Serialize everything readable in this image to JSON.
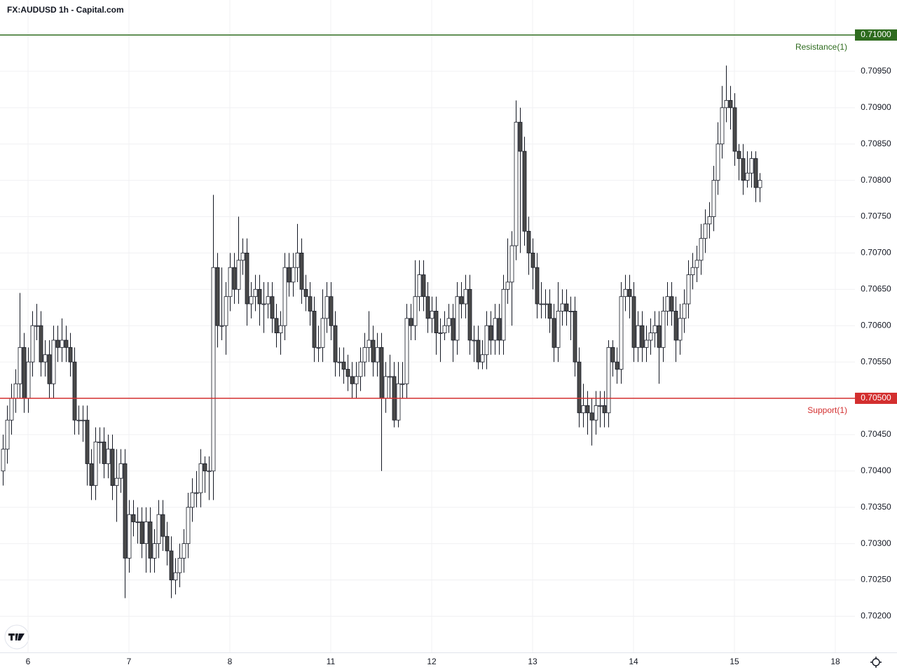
{
  "chart_data": {
    "type": "candlestick",
    "title": "FX:AUDUSD 1h - Capital.com",
    "categories": [
      null,
      null,
      null,
      null,
      null,
      null,
      "6",
      null,
      null,
      null,
      null,
      null,
      null,
      null,
      null,
      null,
      null,
      null,
      null,
      null,
      null,
      null,
      null,
      null,
      null,
      null,
      null,
      null,
      null,
      null,
      "7",
      null,
      null,
      null,
      null,
      null,
      null,
      null,
      null,
      null,
      null,
      null,
      null,
      null,
      null,
      null,
      null,
      null,
      null,
      null,
      null,
      null,
      null,
      null,
      "8",
      null,
      null,
      null,
      null,
      null,
      null,
      null,
      null,
      null,
      null,
      null,
      null,
      null,
      null,
      null,
      null,
      null,
      null,
      null,
      null,
      null,
      null,
      null,
      "11",
      null,
      null,
      null,
      null,
      null,
      null,
      null,
      null,
      null,
      null,
      null,
      null,
      null,
      null,
      null,
      null,
      null,
      null,
      null,
      null,
      null,
      null,
      null,
      "12",
      null,
      null,
      null,
      null,
      null,
      null,
      null,
      null,
      null,
      null,
      null,
      null,
      null,
      null,
      null,
      null,
      null,
      null,
      null,
      null,
      null,
      null,
      null,
      "13",
      null,
      null,
      null,
      null,
      null,
      null,
      null,
      null,
      null,
      null,
      null,
      null,
      null,
      null,
      null,
      null,
      null,
      null,
      null,
      null,
      null,
      null,
      null,
      "14",
      null,
      null,
      null,
      null,
      null,
      null,
      null,
      null,
      null,
      null,
      null,
      null,
      null,
      null,
      null,
      null,
      null,
      null,
      null,
      null,
      null,
      null,
      null,
      "15",
      null,
      null,
      null,
      null,
      null,
      null,
      null,
      null,
      null,
      null,
      null,
      null,
      null,
      null,
      null,
      null,
      null,
      null,
      null,
      null,
      null,
      null,
      null,
      "18"
    ],
    "open": [
      0.704,
      0.7043,
      0.7047,
      0.705,
      0.7052,
      0.7057,
      0.705,
      0.7055,
      0.706,
      0.706,
      0.7055,
      0.7056,
      0.7052,
      0.7058,
      0.7057,
      0.7058,
      0.7057,
      0.7055,
      0.7047,
      0.7047,
      0.7047,
      0.7041,
      0.7038,
      0.7044,
      0.7044,
      0.7041,
      0.7043,
      0.7038,
      0.7039,
      0.7041,
      0.7028,
      0.7034,
      0.7033,
      0.7033,
      0.703,
      0.7033,
      0.7028,
      0.703,
      0.7034,
      0.7031,
      0.7029,
      0.7025,
      0.7026,
      0.7028,
      0.703,
      0.7035,
      0.7037,
      0.7037,
      0.7041,
      0.704,
      0.704,
      0.7068,
      0.706,
      0.706,
      0.7064,
      0.7068,
      0.7065,
      0.7069,
      0.707,
      0.7063,
      0.7064,
      0.7065,
      0.7063,
      0.7063,
      0.7064,
      0.7061,
      0.7059,
      0.706,
      0.7068,
      0.7066,
      0.7068,
      0.707,
      0.7065,
      0.7064,
      0.7062,
      0.7057,
      0.7057,
      0.7061,
      0.7064,
      0.706,
      0.7055,
      0.7055,
      0.7054,
      0.7053,
      0.7052,
      0.7053,
      0.7055,
      0.7057,
      0.7058,
      0.7055,
      0.7057,
      0.705,
      0.7053,
      0.7053,
      0.7047,
      0.7052,
      0.7052,
      0.7061,
      0.706,
      0.7064,
      0.7067,
      0.7064,
      0.7061,
      0.7062,
      0.7059,
      0.7059,
      0.706,
      0.7061,
      0.7058,
      0.7064,
      0.7063,
      0.7065,
      0.7058,
      0.7058,
      0.7055,
      0.7056,
      0.706,
      0.7058,
      0.7061,
      0.7058,
      0.7065,
      0.7066,
      0.7071,
      0.7088,
      0.7084,
      0.7073,
      0.707,
      0.7068,
      0.7063,
      0.7063,
      0.7063,
      0.7061,
      0.7057,
      0.7062,
      0.7063,
      0.7062,
      0.7062,
      0.7055,
      0.7048,
      0.7049,
      0.7048,
      0.7047,
      0.7049,
      0.7049,
      0.7048,
      0.7057,
      0.7055,
      0.7054,
      0.7064,
      0.7065,
      0.7064,
      0.7057,
      0.706,
      0.7057,
      0.7058,
      0.7059,
      0.706,
      0.7057,
      0.7062,
      0.7064,
      0.7062,
      0.7058,
      0.7061,
      0.7063,
      0.7067,
      0.7068,
      0.7069,
      0.7072,
      0.7074,
      0.7075,
      0.708,
      0.7085,
      0.709,
      0.7091,
      0.709,
      0.7084,
      0.7083,
      0.708,
      0.7081,
      0.7083,
      0.7079,
      null,
      null,
      null,
      null,
      null,
      null,
      null,
      null,
      null,
      null,
      null,
      null,
      null,
      null,
      null,
      null,
      null,
      null
    ],
    "high": [
      0.7045,
      0.7049,
      0.7052,
      0.7054,
      0.70645,
      0.7059,
      0.7057,
      0.7062,
      0.7063,
      0.7062,
      0.7058,
      0.7058,
      0.706,
      0.706,
      0.7061,
      0.706,
      0.7059,
      0.7057,
      0.7049,
      0.7049,
      0.7049,
      0.7043,
      0.7046,
      0.7046,
      0.7046,
      0.7045,
      0.7045,
      0.7043,
      0.7043,
      0.7043,
      0.7036,
      0.7036,
      0.7035,
      0.7035,
      0.7035,
      0.7035,
      0.7032,
      0.7036,
      0.7036,
      0.7033,
      0.7031,
      0.7028,
      0.703,
      0.7032,
      0.7037,
      0.7039,
      0.704,
      0.7043,
      0.7042,
      0.7042,
      0.7078,
      0.707,
      0.7068,
      0.7066,
      0.707,
      0.707,
      0.7075,
      0.7072,
      0.7072,
      0.7066,
      0.7067,
      0.7067,
      0.7066,
      0.7066,
      0.7066,
      0.7063,
      0.7062,
      0.707,
      0.707,
      0.707,
      0.7074,
      0.7072,
      0.7067,
      0.7066,
      0.7064,
      0.706,
      0.7065,
      0.7066,
      0.7066,
      0.7062,
      0.7057,
      0.7057,
      0.7056,
      0.7055,
      0.7055,
      0.7057,
      0.7059,
      0.7062,
      0.706,
      0.7059,
      0.7059,
      0.7055,
      0.7056,
      0.7055,
      0.7055,
      0.7055,
      0.7063,
      0.7063,
      0.7069,
      0.7069,
      0.7069,
      0.7066,
      0.7064,
      0.7064,
      0.7061,
      0.7062,
      0.7063,
      0.7063,
      0.7066,
      0.7066,
      0.7067,
      0.7067,
      0.706,
      0.706,
      0.7058,
      0.7062,
      0.7062,
      0.7063,
      0.7063,
      0.7067,
      0.7072,
      0.7073,
      0.7091,
      0.709,
      0.7086,
      0.7075,
      0.7072,
      0.707,
      0.7066,
      0.7065,
      0.7065,
      0.7063,
      0.7066,
      0.7065,
      0.7065,
      0.7064,
      0.7064,
      0.7057,
      0.7052,
      0.7051,
      0.705,
      0.7051,
      0.7051,
      0.7051,
      0.7058,
      0.7058,
      0.7057,
      0.7066,
      0.7067,
      0.7067,
      0.7066,
      0.7062,
      0.7062,
      0.706,
      0.7061,
      0.7062,
      0.7062,
      0.7064,
      0.7066,
      0.7066,
      0.7064,
      0.7063,
      0.7065,
      0.7069,
      0.707,
      0.7071,
      0.7074,
      0.7076,
      0.7077,
      0.7082,
      0.7088,
      0.7093,
      0.70958,
      0.7093,
      0.7092,
      0.7085,
      0.7085,
      0.7084,
      0.7084,
      0.7084,
      0.7081,
      null,
      null,
      null,
      null,
      null,
      null,
      null,
      null,
      null,
      null,
      null,
      null,
      null,
      null,
      null,
      null,
      null,
      null
    ],
    "low": [
      0.7038,
      0.7041,
      0.7045,
      0.7048,
      0.705,
      0.7048,
      0.7048,
      0.7053,
      0.7058,
      0.7053,
      0.7053,
      0.705,
      0.705,
      0.7055,
      0.7055,
      0.7055,
      0.7053,
      0.7045,
      0.7045,
      0.7044,
      0.7038,
      0.7036,
      0.7036,
      0.7041,
      0.7039,
      0.7039,
      0.7036,
      0.7033,
      0.7037,
      0.70225,
      0.7026,
      0.7031,
      0.703,
      0.7028,
      0.7026,
      0.7026,
      0.7026,
      0.7028,
      0.7029,
      0.7027,
      0.70225,
      0.7023,
      0.7024,
      0.7026,
      0.7028,
      0.7033,
      0.7035,
      0.7035,
      0.7037,
      0.7036,
      0.7036,
      0.7057,
      0.7058,
      0.7056,
      0.7062,
      0.7063,
      0.7063,
      0.7067,
      0.706,
      0.7061,
      0.7062,
      0.706,
      0.7059,
      0.7061,
      0.7059,
      0.7057,
      0.7056,
      0.7058,
      0.7064,
      0.7064,
      0.7066,
      0.7063,
      0.7062,
      0.706,
      0.7055,
      0.7055,
      0.7055,
      0.7059,
      0.7058,
      0.7053,
      0.7053,
      0.7052,
      0.7051,
      0.705,
      0.705,
      0.7051,
      0.7053,
      0.7055,
      0.7053,
      0.7053,
      0.704,
      0.7048,
      0.705,
      0.7046,
      0.7046,
      0.705,
      0.705,
      0.7058,
      0.7058,
      0.7062,
      0.7062,
      0.7059,
      0.7059,
      0.7056,
      0.7055,
      0.7058,
      0.7059,
      0.7055,
      0.7056,
      0.7061,
      0.7061,
      0.7056,
      0.7055,
      0.7054,
      0.7054,
      0.7054,
      0.7056,
      0.7056,
      0.7056,
      0.7056,
      0.7063,
      0.706,
      0.7069,
      0.707,
      0.7071,
      0.7067,
      0.7065,
      0.7061,
      0.7061,
      0.7061,
      0.7059,
      0.7055,
      0.7055,
      0.706,
      0.706,
      0.7058,
      0.7053,
      0.7046,
      0.7046,
      0.7045,
      0.70435,
      0.7045,
      0.7046,
      0.7046,
      0.7046,
      0.7053,
      0.7052,
      0.7052,
      0.7062,
      0.7061,
      0.7055,
      0.7055,
      0.7055,
      0.7055,
      0.7056,
      0.7057,
      0.7052,
      0.7055,
      0.706,
      0.706,
      0.7055,
      0.7056,
      0.7059,
      0.7061,
      0.7065,
      0.7066,
      0.7067,
      0.707,
      0.7072,
      0.7073,
      0.7078,
      0.7083,
      0.7088,
      0.7087,
      0.7082,
      0.708,
      0.7078,
      0.7079,
      0.7079,
      0.7077,
      0.7077,
      null,
      null,
      null,
      null,
      null,
      null,
      null,
      null,
      null,
      null,
      null,
      null,
      null,
      null,
      null,
      null,
      null,
      null
    ],
    "close": [
      0.7043,
      0.7047,
      0.705,
      0.7052,
      0.7057,
      0.705,
      0.7055,
      0.706,
      0.706,
      0.7055,
      0.7056,
      0.7052,
      0.7058,
      0.7057,
      0.7058,
      0.7057,
      0.7055,
      0.7047,
      0.7047,
      0.7047,
      0.7041,
      0.7038,
      0.7044,
      0.7044,
      0.7041,
      0.7043,
      0.7038,
      0.7039,
      0.7041,
      0.7028,
      0.7034,
      0.7033,
      0.7033,
      0.703,
      0.7033,
      0.7028,
      0.703,
      0.7034,
      0.7031,
      0.7029,
      0.7025,
      0.7026,
      0.7028,
      0.703,
      0.7035,
      0.7037,
      0.7037,
      0.7041,
      0.704,
      0.704,
      0.7068,
      0.706,
      0.706,
      0.7064,
      0.7068,
      0.7065,
      0.7069,
      0.707,
      0.7063,
      0.7064,
      0.7065,
      0.7063,
      0.7063,
      0.7064,
      0.7061,
      0.7059,
      0.706,
      0.7068,
      0.7066,
      0.7068,
      0.707,
      0.7065,
      0.7064,
      0.7062,
      0.7057,
      0.7057,
      0.7061,
      0.7064,
      0.706,
      0.7055,
      0.7055,
      0.7054,
      0.7053,
      0.7052,
      0.7053,
      0.7055,
      0.7057,
      0.7058,
      0.7055,
      0.7057,
      0.705,
      0.7053,
      0.7053,
      0.7047,
      0.7052,
      0.7052,
      0.7061,
      0.706,
      0.7064,
      0.7067,
      0.7064,
      0.7061,
      0.7062,
      0.7059,
      0.7059,
      0.706,
      0.7061,
      0.7058,
      0.7064,
      0.7063,
      0.7065,
      0.7058,
      0.7058,
      0.7055,
      0.7056,
      0.706,
      0.7058,
      0.7061,
      0.7058,
      0.7065,
      0.7066,
      0.7071,
      0.7088,
      0.7084,
      0.7073,
      0.707,
      0.7068,
      0.7063,
      0.7063,
      0.7063,
      0.7061,
      0.7057,
      0.7062,
      0.7063,
      0.7062,
      0.7062,
      0.7055,
      0.7048,
      0.7049,
      0.7048,
      0.7047,
      0.7049,
      0.7049,
      0.7048,
      0.7057,
      0.7055,
      0.7054,
      0.7064,
      0.7065,
      0.7064,
      0.7057,
      0.706,
      0.7057,
      0.7058,
      0.7059,
      0.706,
      0.7057,
      0.7062,
      0.7064,
      0.7062,
      0.7058,
      0.7061,
      0.7063,
      0.7067,
      0.7068,
      0.7069,
      0.7072,
      0.7074,
      0.7075,
      0.708,
      0.7085,
      0.709,
      0.7091,
      0.709,
      0.7084,
      0.7083,
      0.708,
      0.7081,
      0.7083,
      0.7079,
      0.708,
      null,
      null,
      null,
      null,
      null,
      null,
      null,
      null,
      null,
      null,
      null,
      null,
      null,
      null,
      null,
      null,
      null,
      null
    ],
    "ylim": [
      0.701503,
      0.710482
    ],
    "yticks": [
      {
        "value": 0.702,
        "label": "0.70200"
      },
      {
        "value": 0.7025,
        "label": "0.70250"
      },
      {
        "value": 0.703,
        "label": "0.70300"
      },
      {
        "value": 0.7035,
        "label": "0.70350"
      },
      {
        "value": 0.704,
        "label": "0.70400"
      },
      {
        "value": 0.7045,
        "label": "0.70450"
      },
      {
        "value": 0.7055,
        "label": "0.70550"
      },
      {
        "value": 0.706,
        "label": "0.70600"
      },
      {
        "value": 0.7065,
        "label": "0.70650"
      },
      {
        "value": 0.707,
        "label": "0.70700"
      },
      {
        "value": 0.7075,
        "label": "0.70750"
      },
      {
        "value": 0.708,
        "label": "0.70800"
      },
      {
        "value": 0.7085,
        "label": "0.70850"
      },
      {
        "value": 0.709,
        "label": "0.70900"
      },
      {
        "value": 0.7095,
        "label": "0.70950"
      }
    ],
    "grid": true,
    "up_color": "#ffffff",
    "down_color": "#4a4a4a",
    "levels": [
      {
        "name": "Resistance(1)",
        "value": 0.71,
        "label": "0.71000",
        "color": "#2e6b1e"
      },
      {
        "name": "Support(1)",
        "value": 0.705,
        "label": "0.70500",
        "color": "#d32f2f"
      }
    ]
  }
}
